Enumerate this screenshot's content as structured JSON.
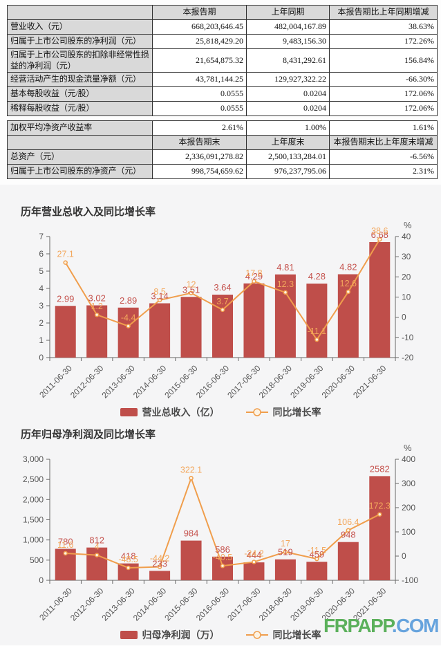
{
  "report_table": {
    "period_header": [
      "本报告期",
      "上年同期",
      "本报告期比上年同期增减"
    ],
    "period_rows": [
      [
        "营业收入（元）",
        "668,203,646.45",
        "482,004,167.89",
        "38.63%"
      ],
      [
        "归属于上市公司股东的净利润（元）",
        "25,818,429.20",
        "9,483,156.30",
        "172.26%"
      ],
      [
        "归属于上市公司股东的扣除非经常性损益的净利润（元）",
        "21,654,875.32",
        "8,431,292.61",
        "156.84%"
      ],
      [
        "经营活动产生的现金流量净额（元）",
        "43,781,144.25",
        "129,927,322.22",
        "-66.30%"
      ],
      [
        "基本每股收益（元/股）",
        "0.0555",
        "0.0204",
        "172.06%"
      ],
      [
        "稀释每股收益（元/股）",
        "0.0555",
        "0.0204",
        "172.06%"
      ]
    ],
    "roe_row": [
      "加权平均净资产收益率",
      "2.61%",
      "1.00%",
      "1.61%"
    ],
    "endpoint_header": [
      "本报告期末",
      "上年度末",
      "本报告期末比上年度末增减"
    ],
    "endpoint_rows": [
      [
        "总资产（元）",
        "2,336,091,278.82",
        "2,500,133,284.01",
        "-6.56%"
      ],
      [
        "归属于上市公司股东的净资产（元）",
        "998,754,659.62",
        "976,237,795.06",
        "2.31%"
      ]
    ]
  },
  "chart_data": [
    {
      "type": "bar+line",
      "title": "历年营业总收入及同比增长率",
      "categories": [
        "2011-06-30",
        "2012-06-30",
        "2013-06-30",
        "2014-06-30",
        "2015-06-30",
        "2016-06-30",
        "2017-06-30",
        "2018-06-30",
        "2019-06-30",
        "2020-06-30",
        "2021-06-30"
      ],
      "series": [
        {
          "name": "营业总收入（亿）",
          "type": "bar",
          "values": [
            2.99,
            3.02,
            2.89,
            3.14,
            3.51,
            3.64,
            4.29,
            4.81,
            4.28,
            4.82,
            6.68
          ]
        },
        {
          "name": "同比增长率",
          "type": "line",
          "values": [
            27.1,
            1.2,
            -4.4,
            8.5,
            12,
            3.7,
            17.8,
            12.3,
            -11.1,
            12.6,
            38.6
          ]
        }
      ],
      "left_axis": {
        "min": 0,
        "max": 7,
        "step": 1
      },
      "right_axis": {
        "min": -20,
        "max": 40,
        "step": 10,
        "unit": "%"
      },
      "legend_position": "bottom-center",
      "grid": false
    },
    {
      "type": "bar+line",
      "title": "历年归母净利润及同比增长率",
      "categories": [
        "2011-06-30",
        "2012-06-30",
        "2013-06-30",
        "2014-06-30",
        "2015-06-30",
        "2016-06-30",
        "2017-06-30",
        "2018-06-30",
        "2019-06-30",
        "2020-06-30",
        "2021-06-30"
      ],
      "series": [
        {
          "name": "归母净利润（万）",
          "type": "bar",
          "values": [
            780,
            812,
            418,
            233,
            984,
            586,
            444,
            519,
            459,
            948,
            2582
          ]
        },
        {
          "name": "同比增长率",
          "type": "line",
          "values": [
            11.6,
            4,
            -48.5,
            -44.2,
            322.1,
            -40.5,
            -24.2,
            17,
            -11.5,
            106.4,
            172.3
          ]
        }
      ],
      "left_axis": {
        "min": 0,
        "max": 3000,
        "step": 500
      },
      "right_axis": {
        "min": -100,
        "max": 400,
        "step": 100,
        "unit": "%"
      },
      "legend_position": "bottom-center",
      "grid": false
    }
  ],
  "watermark": {
    "brand": "FRPAPP",
    "suffix": ".COM"
  },
  "colors": {
    "bar": "#bf4e4a",
    "bar_label": "#c5534e",
    "line": "#f09e4c",
    "line_label": "#f3a75c",
    "point_fill": "#fdf3e3",
    "axis": "#666666",
    "tick_text": "#555555",
    "title_text": "#333333",
    "legend_text": "#4a4a4a",
    "watermark_brand": "#5bb05b",
    "watermark_suffix": "#66a3dd",
    "table_header_bg": "#d9d9d9",
    "chart_bg": "#f5f5f6"
  }
}
